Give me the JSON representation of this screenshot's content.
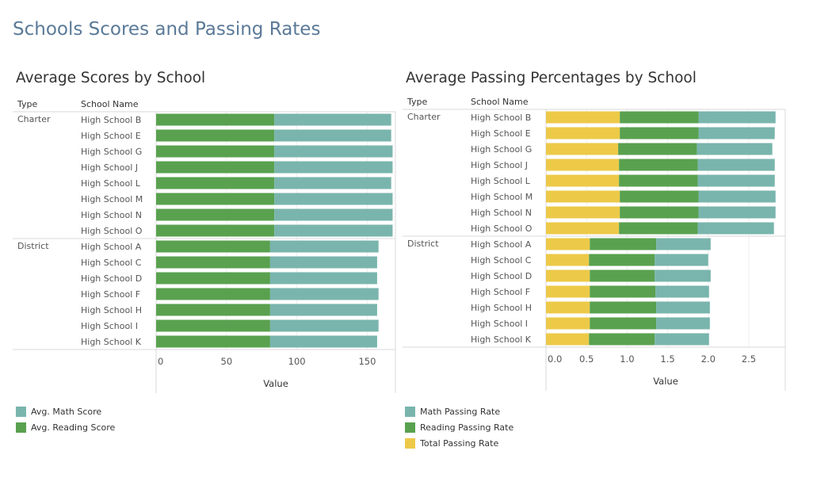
{
  "dashboard_title": "Schools Scores and Passing Rates",
  "colors": {
    "math": "#79b5ad",
    "reading": "#59a14f",
    "total": "#edc948",
    "grid": "#d9d9d9",
    "text": "#555555"
  },
  "chart_data": [
    {
      "type": "bar",
      "stacked": true,
      "orientation": "horizontal",
      "title": "Average Scores by School",
      "row_headers": [
        "Type",
        "School Name"
      ],
      "groups": [
        {
          "type": "Charter",
          "schools": [
            "High School B",
            "High School E",
            "High School G",
            "High School J",
            "High School L",
            "High School M",
            "High School N",
            "High School O"
          ]
        },
        {
          "type": "District",
          "schools": [
            "High School A",
            "High School C",
            "High School D",
            "High School F",
            "High School H",
            "High School I",
            "High School K"
          ]
        }
      ],
      "series": [
        {
          "name": "Avg. Reading Score",
          "color_key": "reading",
          "values": [
            84,
            84,
            84,
            84,
            84,
            84,
            84,
            84,
            81,
            81,
            81,
            81,
            81,
            81,
            81
          ]
        },
        {
          "name": "Avg. Math Score",
          "color_key": "math",
          "values": [
            83,
            83,
            84,
            84,
            83,
            84,
            84,
            84,
            77,
            76,
            76,
            77,
            76,
            77,
            76
          ]
        }
      ],
      "xlim": [
        0,
        170
      ],
      "xticks": [
        0,
        50,
        100,
        150
      ],
      "xlabel": "Value",
      "legend_position": "bottom-left"
    },
    {
      "type": "bar",
      "stacked": true,
      "orientation": "horizontal",
      "title": "Average Passing Percentages by School",
      "row_headers": [
        "Type",
        "School Name"
      ],
      "groups": [
        {
          "type": "Charter",
          "schools": [
            "High School B",
            "High School E",
            "High School G",
            "High School J",
            "High School L",
            "High School M",
            "High School N",
            "High School O"
          ]
        },
        {
          "type": "District",
          "schools": [
            "High School A",
            "High School C",
            "High School D",
            "High School F",
            "High School H",
            "High School I",
            "High School K"
          ]
        }
      ],
      "series": [
        {
          "name": "Total Passing Rate",
          "color_key": "total",
          "values": [
            0.91,
            0.91,
            0.89,
            0.9,
            0.9,
            0.91,
            0.91,
            0.9,
            0.54,
            0.53,
            0.54,
            0.54,
            0.54,
            0.54,
            0.53
          ]
        },
        {
          "name": "Reading Passing Rate",
          "color_key": "reading",
          "values": [
            0.97,
            0.97,
            0.97,
            0.97,
            0.97,
            0.97,
            0.97,
            0.97,
            0.82,
            0.81,
            0.8,
            0.81,
            0.82,
            0.82,
            0.81
          ]
        },
        {
          "name": "Math Passing Rate",
          "color_key": "math",
          "values": [
            0.95,
            0.94,
            0.93,
            0.95,
            0.95,
            0.95,
            0.95,
            0.94,
            0.67,
            0.66,
            0.69,
            0.66,
            0.66,
            0.66,
            0.67
          ]
        }
      ],
      "xlim": [
        0,
        2.95
      ],
      "xticks": [
        0.0,
        0.5,
        1.0,
        1.5,
        2.0,
        2.5
      ],
      "xtick_labels": [
        "0.0",
        "0.5",
        "1.0",
        "1.5",
        "2.0",
        "2.5"
      ],
      "xlabel": "Value",
      "legend_position": "bottom-left"
    }
  ]
}
